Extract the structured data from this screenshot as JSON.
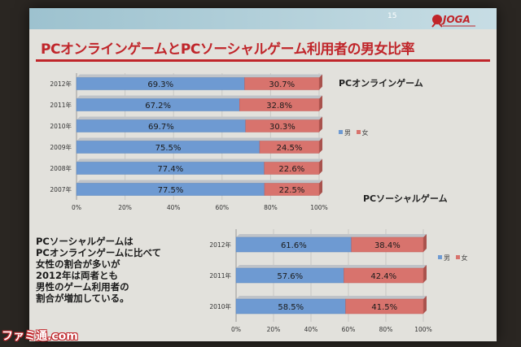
{
  "page_number": "15",
  "logo_text": "JOGA",
  "title": "PCオンラインゲームとPCソーシャルゲーム利用者の男女比率",
  "note_lines": [
    "PCソーシャルゲームは",
    "PCオンラインゲームに比べて",
    "女性の割合が多いが",
    "2012年は両者とも",
    "男性のゲーム利用者の",
    "割合が増加している。"
  ],
  "watermark": "ファミ通.com",
  "colors": {
    "male": "#6e9ad2",
    "female": "#d8736d",
    "title": "#c0252a"
  },
  "chart_data": [
    {
      "type": "bar",
      "orientation": "horizontal",
      "stacked": true,
      "title": "PCオンラインゲーム",
      "categories": [
        "2012年",
        "2011年",
        "2010年",
        "2009年",
        "2008年",
        "2007年"
      ],
      "series": [
        {
          "name": "男",
          "values": [
            69.3,
            67.2,
            69.7,
            75.5,
            77.4,
            77.5
          ],
          "labels": [
            "69.3%",
            "67.2%",
            "69.7%",
            "75.5%",
            "77.4%",
            "77.5%"
          ]
        },
        {
          "name": "女",
          "values": [
            30.7,
            32.8,
            30.3,
            24.5,
            22.6,
            22.5
          ],
          "labels": [
            "30.7%",
            "32.8%",
            "30.3%",
            "24.5%",
            "22.6%",
            "22.5%"
          ]
        }
      ],
      "xticks": [
        "0%",
        "20%",
        "40%",
        "60%",
        "80%",
        "100%"
      ],
      "xlim": [
        0,
        100
      ],
      "legend": "right"
    },
    {
      "type": "bar",
      "orientation": "horizontal",
      "stacked": true,
      "title": "PCソーシャルゲーム",
      "categories": [
        "2012年",
        "2011年",
        "2010年"
      ],
      "series": [
        {
          "name": "男",
          "values": [
            61.6,
            57.6,
            58.5
          ],
          "labels": [
            "61.6%",
            "57.6%",
            "58.5%"
          ]
        },
        {
          "name": "女",
          "values": [
            38.4,
            42.4,
            41.5
          ],
          "labels": [
            "38.4%",
            "42.4%",
            "41.5%"
          ]
        }
      ],
      "xticks": [
        "0%",
        "20%",
        "40%",
        "60%",
        "80%",
        "100%"
      ],
      "xlim": [
        0,
        100
      ],
      "legend": "right"
    }
  ]
}
